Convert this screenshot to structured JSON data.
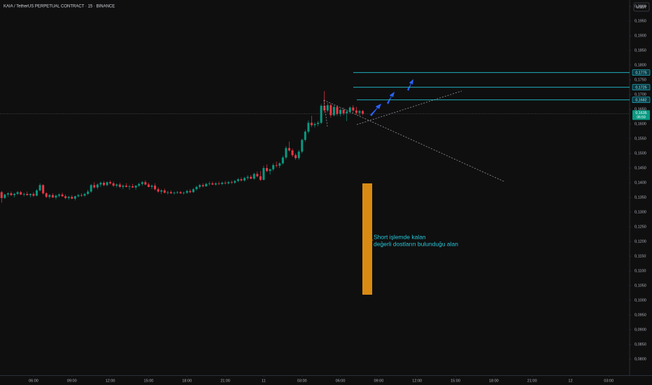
{
  "chart_data": {
    "type": "candlestick",
    "title": "KAIA / TetherUS PERPETUAL CONTRACT · 15 · BINANCE",
    "unit": "USDT",
    "up_color": "#089981",
    "down_color": "#f23645",
    "grid": false,
    "xlim": [
      -0.5,
      196.5
    ],
    "xticks": [
      {
        "value": 10,
        "label": "06:00"
      },
      {
        "value": 22,
        "label": "09:00"
      },
      {
        "value": 34,
        "label": "12:00"
      },
      {
        "value": 46,
        "label": "15:00"
      },
      {
        "value": 58,
        "label": "18:00"
      },
      {
        "value": 70,
        "label": "21:00"
      },
      82,
      {
        "value": 94,
        "label": "03:00"
      },
      {
        "value": 106,
        "label": "06:00"
      },
      {
        "value": 118,
        "label": "09:00"
      },
      {
        "value": 130,
        "label": "12:00"
      },
      {
        "value": 142,
        "label": "15:00"
      },
      {
        "value": 154,
        "label": "18:00"
      },
      {
        "value": 166,
        "label": "21:00"
      },
      {
        "value": 178,
        "label": "12"
      },
      {
        "value": 190,
        "label": "03:00"
      }
    ],
    "xtick_texts": {
      "82": "11"
    },
    "ylim": [
      0.0745,
      0.2022
    ],
    "yticks": [
      {
        "value": 0.2,
        "label": "0,2000"
      },
      {
        "value": 0.195,
        "label": "0,1950"
      },
      {
        "value": 0.19,
        "label": "0,1900"
      },
      {
        "value": 0.185,
        "label": "0,1850"
      },
      {
        "value": 0.18,
        "label": "0,1800"
      },
      {
        "value": 0.175,
        "label": "0,1750"
      },
      {
        "value": 0.17,
        "label": "0,1700"
      },
      {
        "value": 0.165,
        "label": "0,1650"
      },
      {
        "value": 0.16,
        "label": "0,1600"
      },
      {
        "value": 0.155,
        "label": "0,1550"
      },
      {
        "value": 0.15,
        "label": "0,1500"
      },
      {
        "value": 0.145,
        "label": "0,1450"
      },
      {
        "value": 0.14,
        "label": "0,1400"
      },
      {
        "value": 0.135,
        "label": "0,1350"
      },
      {
        "value": 0.13,
        "label": "0,1300"
      },
      {
        "value": 0.125,
        "label": "0,1250"
      },
      {
        "value": 0.12,
        "label": "0,1200"
      },
      {
        "value": 0.115,
        "label": "0,1150"
      },
      {
        "value": 0.11,
        "label": "0,1100"
      },
      {
        "value": 0.105,
        "label": "0,1050"
      },
      {
        "value": 0.1,
        "label": "0,1000"
      },
      {
        "value": 0.095,
        "label": "0,0950"
      },
      {
        "value": 0.09,
        "label": "0,0900"
      },
      {
        "value": 0.085,
        "label": "0,0850"
      },
      {
        "value": 0.08,
        "label": "0,0800"
      }
    ],
    "levels": [
      {
        "value": 0.1775,
        "label": "0,1775"
      },
      {
        "value": 0.1725,
        "label": "0,1725"
      },
      {
        "value": 0.1682,
        "label": "0,1682"
      }
    ],
    "last_price": {
      "value": 0.1635,
      "label": "0,1635"
    },
    "countdown": "06:59",
    "annotation": [
      "Short işlemde kalan",
      "değerli dostların bulunduğu alan"
    ],
    "candles": [
      [
        0.1368,
        0.1372,
        0.1332,
        0.1348
      ],
      [
        0.1348,
        0.1362,
        0.1345,
        0.136
      ],
      [
        0.136,
        0.1368,
        0.1352,
        0.1364
      ],
      [
        0.1364,
        0.137,
        0.1355,
        0.1358
      ],
      [
        0.1358,
        0.1366,
        0.135,
        0.1362
      ],
      [
        0.1362,
        0.1372,
        0.1358,
        0.1368
      ],
      [
        0.1368,
        0.1372,
        0.1358,
        0.136
      ],
      [
        0.136,
        0.1366,
        0.1354,
        0.1362
      ],
      [
        0.1362,
        0.137,
        0.1356,
        0.1358
      ],
      [
        0.1358,
        0.1364,
        0.135,
        0.1362
      ],
      [
        0.1362,
        0.1368,
        0.1352,
        0.1356
      ],
      [
        0.1356,
        0.1378,
        0.1354,
        0.1374
      ],
      [
        0.1374,
        0.1398,
        0.137,
        0.1392
      ],
      [
        0.1392,
        0.1395,
        0.136,
        0.1364
      ],
      [
        0.1364,
        0.1368,
        0.1348,
        0.1352
      ],
      [
        0.1352,
        0.1362,
        0.1346,
        0.1358
      ],
      [
        0.1358,
        0.1364,
        0.1348,
        0.135
      ],
      [
        0.135,
        0.136,
        0.1344,
        0.1356
      ],
      [
        0.1356,
        0.1364,
        0.135,
        0.136
      ],
      [
        0.136,
        0.1366,
        0.1352,
        0.1354
      ],
      [
        0.1354,
        0.136,
        0.1344,
        0.1348
      ],
      [
        0.1348,
        0.1356,
        0.1342,
        0.1352
      ],
      [
        0.1352,
        0.1358,
        0.1344,
        0.1346
      ],
      [
        0.1346,
        0.1356,
        0.134,
        0.1354
      ],
      [
        0.1354,
        0.1362,
        0.135,
        0.1358
      ],
      [
        0.1358,
        0.1364,
        0.1352,
        0.1356
      ],
      [
        0.1356,
        0.1366,
        0.1352,
        0.1362
      ],
      [
        0.1362,
        0.1376,
        0.1358,
        0.137
      ],
      [
        0.137,
        0.1396,
        0.1366,
        0.1392
      ],
      [
        0.1392,
        0.1402,
        0.138,
        0.1384
      ],
      [
        0.1384,
        0.1398,
        0.1378,
        0.1394
      ],
      [
        0.1394,
        0.1404,
        0.1386,
        0.14
      ],
      [
        0.14,
        0.1406,
        0.1388,
        0.1392
      ],
      [
        0.1392,
        0.1404,
        0.1388,
        0.1402
      ],
      [
        0.1402,
        0.1408,
        0.1394,
        0.1398
      ],
      [
        0.1398,
        0.1404,
        0.1386,
        0.139
      ],
      [
        0.139,
        0.1398,
        0.1384,
        0.1394
      ],
      [
        0.1394,
        0.14,
        0.1382,
        0.1386
      ],
      [
        0.1386,
        0.1394,
        0.1378,
        0.139
      ],
      [
        0.139,
        0.1398,
        0.1384,
        0.1386
      ],
      [
        0.1386,
        0.1392,
        0.1376,
        0.1388
      ],
      [
        0.1388,
        0.1396,
        0.1382,
        0.1384
      ],
      [
        0.1384,
        0.1392,
        0.1376,
        0.139
      ],
      [
        0.139,
        0.14,
        0.1386,
        0.1396
      ],
      [
        0.1396,
        0.1406,
        0.139,
        0.1402
      ],
      [
        0.1402,
        0.1408,
        0.1392,
        0.1394
      ],
      [
        0.1394,
        0.14,
        0.1384,
        0.1386
      ],
      [
        0.1386,
        0.1394,
        0.1378,
        0.139
      ],
      [
        0.139,
        0.1398,
        0.1374,
        0.1378
      ],
      [
        0.1378,
        0.1384,
        0.1366,
        0.137
      ],
      [
        0.137,
        0.1378,
        0.1362,
        0.1374
      ],
      [
        0.1374,
        0.138,
        0.1364,
        0.1366
      ],
      [
        0.1366,
        0.1372,
        0.136,
        0.1368
      ],
      [
        0.1368,
        0.1374,
        0.1362,
        0.1364
      ],
      [
        0.1364,
        0.137,
        0.136,
        0.1366
      ],
      [
        0.1366,
        0.1372,
        0.1362,
        0.1368
      ],
      [
        0.1368,
        0.1372,
        0.1362,
        0.1364
      ],
      [
        0.1364,
        0.137,
        0.136,
        0.1366
      ],
      [
        0.1366,
        0.1376,
        0.1362,
        0.1372
      ],
      [
        0.1372,
        0.1378,
        0.1364,
        0.1368
      ],
      [
        0.1368,
        0.1382,
        0.1366,
        0.1378
      ],
      [
        0.1378,
        0.139,
        0.1374,
        0.1386
      ],
      [
        0.1386,
        0.1396,
        0.138,
        0.1392
      ],
      [
        0.1392,
        0.1398,
        0.1384,
        0.1388
      ],
      [
        0.1388,
        0.14,
        0.1386,
        0.1396
      ],
      [
        0.1396,
        0.1404,
        0.139,
        0.1398
      ],
      [
        0.1398,
        0.1404,
        0.1392,
        0.1394
      ],
      [
        0.1394,
        0.1402,
        0.139,
        0.1398
      ],
      [
        0.1398,
        0.1404,
        0.1392,
        0.1396
      ],
      [
        0.1396,
        0.1404,
        0.1392,
        0.14
      ],
      [
        0.14,
        0.1406,
        0.1394,
        0.1398
      ],
      [
        0.1398,
        0.1406,
        0.1394,
        0.1402
      ],
      [
        0.1402,
        0.1408,
        0.1396,
        0.14
      ],
      [
        0.14,
        0.141,
        0.1396,
        0.1406
      ],
      [
        0.1406,
        0.1416,
        0.1402,
        0.1412
      ],
      [
        0.1412,
        0.1418,
        0.1404,
        0.1408
      ],
      [
        0.1408,
        0.142,
        0.1404,
        0.1416
      ],
      [
        0.1416,
        0.1426,
        0.141,
        0.142
      ],
      [
        0.142,
        0.1426,
        0.1412,
        0.1414
      ],
      [
        0.1414,
        0.1434,
        0.141,
        0.143
      ],
      [
        0.143,
        0.1438,
        0.1418,
        0.1422
      ],
      [
        0.1422,
        0.144,
        0.1406,
        0.141
      ],
      [
        0.141,
        0.1458,
        0.1408,
        0.145
      ],
      [
        0.145,
        0.1462,
        0.1436,
        0.144
      ],
      [
        0.144,
        0.1448,
        0.1428,
        0.1446
      ],
      [
        0.1446,
        0.1466,
        0.144,
        0.146
      ],
      [
        0.146,
        0.1472,
        0.1452,
        0.1458
      ],
      [
        0.1458,
        0.147,
        0.145,
        0.1466
      ],
      [
        0.1466,
        0.1492,
        0.1462,
        0.1486
      ],
      [
        0.1486,
        0.1524,
        0.148,
        0.1518
      ],
      [
        0.1518,
        0.154,
        0.1506,
        0.151
      ],
      [
        0.151,
        0.1516,
        0.1488,
        0.1494
      ],
      [
        0.1494,
        0.15,
        0.1478,
        0.1484
      ],
      [
        0.1484,
        0.1512,
        0.1478,
        0.1506
      ],
      [
        0.1506,
        0.155,
        0.15,
        0.1546
      ],
      [
        0.1546,
        0.158,
        0.154,
        0.1574
      ],
      [
        0.1574,
        0.1612,
        0.1568,
        0.1604
      ],
      [
        0.1604,
        0.1628,
        0.159,
        0.1596
      ],
      [
        0.1596,
        0.1606,
        0.1588,
        0.16
      ],
      [
        0.16,
        0.161,
        0.1592,
        0.1604
      ],
      [
        0.1604,
        0.1668,
        0.16,
        0.1662
      ],
      [
        0.1662,
        0.1712,
        0.1638,
        0.1646
      ],
      [
        0.1646,
        0.1672,
        0.164,
        0.1664
      ],
      [
        0.1664,
        0.167,
        0.1622,
        0.163
      ],
      [
        0.163,
        0.1664,
        0.1626,
        0.1658
      ],
      [
        0.1658,
        0.1664,
        0.1628,
        0.1634
      ],
      [
        0.1634,
        0.1654,
        0.1626,
        0.1648
      ],
      [
        0.1648,
        0.1656,
        0.163,
        0.1636
      ],
      [
        0.1636,
        0.165,
        0.161,
        0.1642
      ],
      [
        0.1642,
        0.166,
        0.1636,
        0.1656
      ],
      [
        0.1656,
        0.1664,
        0.164,
        0.1646
      ],
      [
        0.1646,
        0.1658,
        0.1632,
        0.1638
      ],
      [
        0.1638,
        0.1648,
        0.1628,
        0.1644
      ],
      [
        0.1644,
        0.1648,
        0.163,
        0.1635
      ]
    ]
  }
}
